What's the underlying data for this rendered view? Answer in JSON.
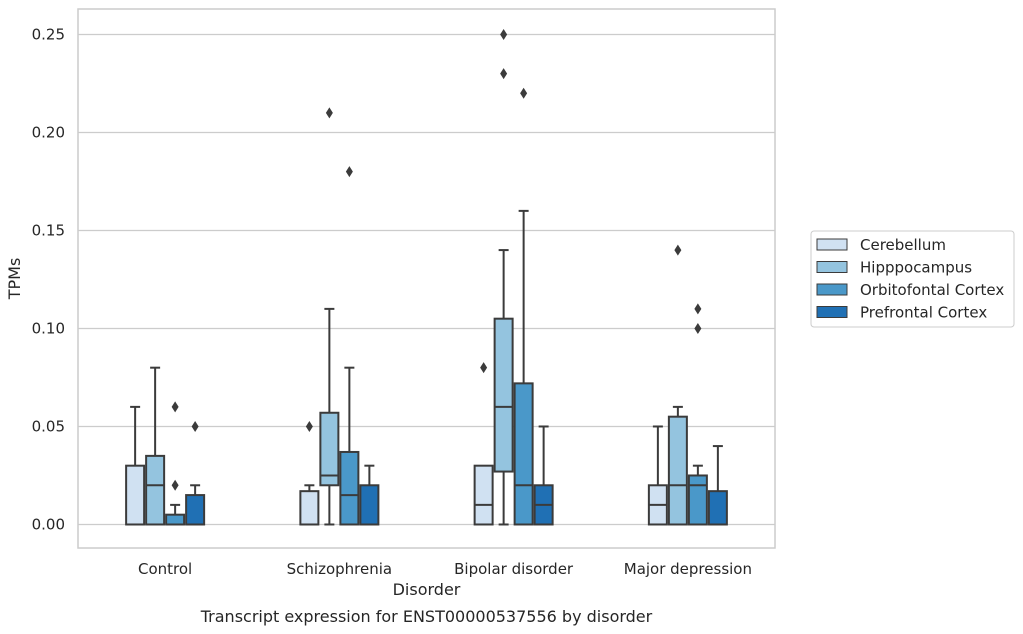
{
  "chart_data": {
    "type": "box",
    "caption": "Transcript expression for ENST00000537556 by disorder",
    "xlabel": "Disorder",
    "ylabel": "TPMs",
    "ylim": [
      -0.012,
      0.263
    ],
    "yticks": [
      0.0,
      0.05,
      0.1,
      0.15,
      0.2,
      0.25
    ],
    "ytick_labels": [
      "0.00",
      "0.05",
      "0.10",
      "0.15",
      "0.20",
      "0.25"
    ],
    "grid": true,
    "legend_position": "right",
    "categories": [
      "Control",
      "Schizophrenia",
      "Bipolar disorder",
      "Major depression"
    ],
    "series": [
      {
        "name": "Cerebellum",
        "color": "#d0e1f2",
        "boxes": [
          {
            "min": 0.0,
            "q1": 0.0,
            "median": 0.0,
            "q3": 0.03,
            "max": 0.06,
            "outliers": []
          },
          {
            "min": 0.0,
            "q1": 0.0,
            "median": 0.0,
            "q3": 0.017,
            "max": 0.02,
            "outliers": [
              0.05
            ]
          },
          {
            "min": 0.0,
            "q1": 0.0,
            "median": 0.01,
            "q3": 0.03,
            "max": 0.03,
            "outliers": [
              0.08
            ]
          },
          {
            "min": 0.0,
            "q1": 0.0,
            "median": 0.01,
            "q3": 0.02,
            "max": 0.05,
            "outliers": []
          }
        ]
      },
      {
        "name": "Hipppocampus",
        "color": "#94c4df",
        "boxes": [
          {
            "min": 0.0,
            "q1": 0.0,
            "median": 0.02,
            "q3": 0.035,
            "max": 0.08,
            "outliers": []
          },
          {
            "min": 0.0,
            "q1": 0.02,
            "median": 0.025,
            "q3": 0.057,
            "max": 0.11,
            "outliers": [
              0.21
            ]
          },
          {
            "min": 0.0,
            "q1": 0.027,
            "median": 0.06,
            "q3": 0.105,
            "max": 0.14,
            "outliers": [
              0.23,
              0.25
            ]
          },
          {
            "min": 0.0,
            "q1": 0.0,
            "median": 0.02,
            "q3": 0.055,
            "max": 0.06,
            "outliers": [
              0.14
            ]
          }
        ]
      },
      {
        "name": "Orbitofontal Cortex",
        "color": "#4a98c9",
        "boxes": [
          {
            "min": 0.0,
            "q1": 0.0,
            "median": 0.0,
            "q3": 0.005,
            "max": 0.01,
            "outliers": [
              0.02,
              0.06
            ]
          },
          {
            "min": 0.0,
            "q1": 0.0,
            "median": 0.015,
            "q3": 0.037,
            "max": 0.08,
            "outliers": [
              0.18
            ]
          },
          {
            "min": 0.0,
            "q1": 0.0,
            "median": 0.02,
            "q3": 0.072,
            "max": 0.16,
            "outliers": [
              0.22
            ]
          },
          {
            "min": 0.0,
            "q1": 0.0,
            "median": 0.02,
            "q3": 0.025,
            "max": 0.03,
            "outliers": [
              0.1,
              0.11
            ]
          }
        ]
      },
      {
        "name": "Prefrontal Cortex",
        "color": "#2070b4",
        "boxes": [
          {
            "min": 0.0,
            "q1": 0.0,
            "median": 0.0,
            "q3": 0.015,
            "max": 0.02,
            "outliers": [
              0.05
            ]
          },
          {
            "min": 0.0,
            "q1": 0.0,
            "median": 0.0,
            "q3": 0.02,
            "max": 0.03,
            "outliers": []
          },
          {
            "min": 0.0,
            "q1": 0.0,
            "median": 0.01,
            "q3": 0.02,
            "max": 0.05,
            "outliers": []
          },
          {
            "min": 0.0,
            "q1": 0.0,
            "median": 0.0,
            "q3": 0.017,
            "max": 0.04,
            "outliers": []
          }
        ]
      }
    ]
  }
}
